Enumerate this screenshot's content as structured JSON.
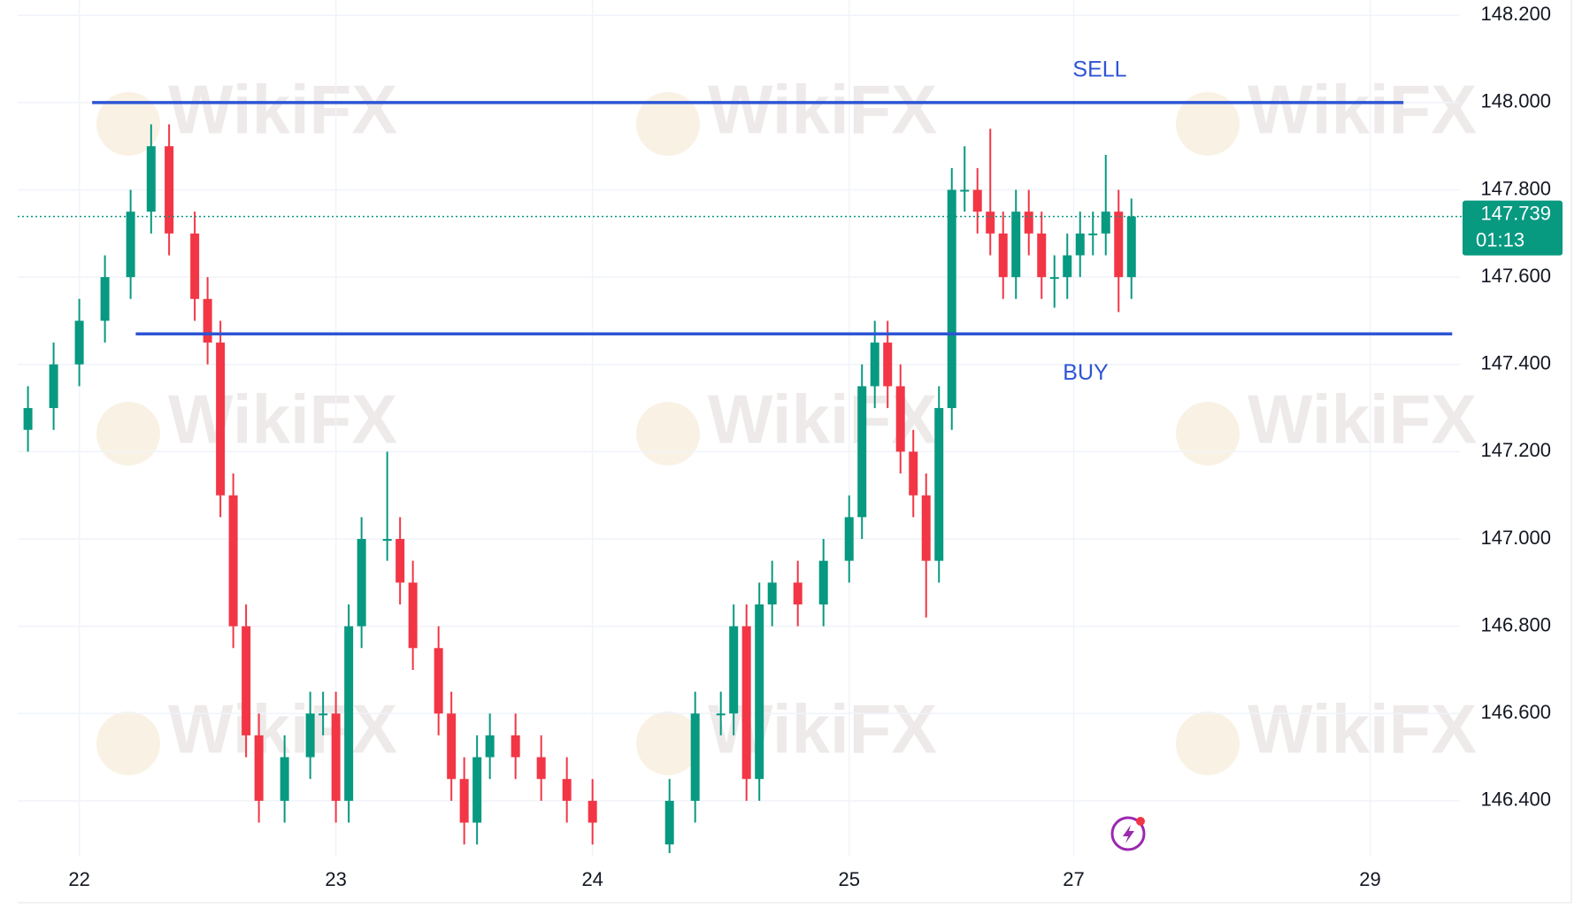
{
  "chart_data": {
    "type": "candlestick",
    "x": [
      -0.2,
      -0.1,
      0,
      0.1,
      0.2,
      0.28,
      0.35,
      0.45,
      0.5,
      0.55,
      0.6,
      0.65,
      0.7,
      0.8,
      0.9,
      0.95,
      1.0,
      1.05,
      1.1,
      1.2,
      1.25,
      1.3,
      1.4,
      1.45,
      1.5,
      1.55,
      1.6,
      1.7,
      1.8,
      1.9,
      2.0,
      2.3,
      2.4,
      2.5,
      2.55,
      2.6,
      2.65,
      2.7,
      2.8,
      2.9,
      3.0,
      3.05,
      3.1,
      3.15,
      3.2,
      3.25,
      3.3,
      3.35,
      3.4,
      3.45,
      3.5,
      3.55,
      3.6,
      3.65,
      3.7,
      3.75,
      3.8,
      3.85,
      3.9,
      3.95,
      4.0,
      4.05,
      4.1
    ],
    "open": [
      147.25,
      147.3,
      147.4,
      147.5,
      147.6,
      147.75,
      147.9,
      147.7,
      147.55,
      147.45,
      147.1,
      146.8,
      146.55,
      146.4,
      146.5,
      146.6,
      146.6,
      146.4,
      146.8,
      147.0,
      147.0,
      146.9,
      146.75,
      146.6,
      146.45,
      146.35,
      146.5,
      146.55,
      146.5,
      146.45,
      146.4,
      146.3,
      146.4,
      146.6,
      146.6,
      146.8,
      146.45,
      146.85,
      146.9,
      146.85,
      146.95,
      147.05,
      147.35,
      147.45,
      147.35,
      147.2,
      147.1,
      146.95,
      147.3,
      147.8,
      147.8,
      147.75,
      147.7,
      147.6,
      147.75,
      147.7,
      147.6,
      147.6,
      147.65,
      147.7,
      147.7,
      147.75,
      147.6
    ],
    "high": [
      147.35,
      147.45,
      147.55,
      147.65,
      147.8,
      147.95,
      147.95,
      147.75,
      147.6,
      147.5,
      147.15,
      146.85,
      146.6,
      146.55,
      146.65,
      146.65,
      146.65,
      146.85,
      147.05,
      147.2,
      147.05,
      146.95,
      146.8,
      146.65,
      146.5,
      146.55,
      146.6,
      146.6,
      146.55,
      146.5,
      146.45,
      146.45,
      146.65,
      146.65,
      146.85,
      146.85,
      146.9,
      146.95,
      146.95,
      147.0,
      147.1,
      147.4,
      147.5,
      147.5,
      147.4,
      147.25,
      147.15,
      147.35,
      147.85,
      147.9,
      147.85,
      147.94,
      147.75,
      147.8,
      147.8,
      147.75,
      147.65,
      147.7,
      147.75,
      147.75,
      147.88,
      147.8,
      147.78
    ],
    "low": [
      147.2,
      147.25,
      147.35,
      147.45,
      147.55,
      147.7,
      147.65,
      147.5,
      147.4,
      147.05,
      146.75,
      146.5,
      146.35,
      146.35,
      146.45,
      146.55,
      146.35,
      146.35,
      146.75,
      146.95,
      146.85,
      146.7,
      146.55,
      146.4,
      146.3,
      146.3,
      146.45,
      146.45,
      146.4,
      146.35,
      146.3,
      146.28,
      146.35,
      146.55,
      146.55,
      146.4,
      146.4,
      146.8,
      146.8,
      146.8,
      146.9,
      147.0,
      147.3,
      147.3,
      147.15,
      147.05,
      146.82,
      146.9,
      147.25,
      147.75,
      147.7,
      147.65,
      147.55,
      147.55,
      147.65,
      147.55,
      147.53,
      147.55,
      147.6,
      147.65,
      147.65,
      147.52,
      147.55
    ],
    "close": [
      147.3,
      147.4,
      147.5,
      147.6,
      147.75,
      147.9,
      147.7,
      147.55,
      147.45,
      147.1,
      146.8,
      146.55,
      146.4,
      146.5,
      146.6,
      146.6,
      146.4,
      146.8,
      147.0,
      147.0,
      146.9,
      146.75,
      146.6,
      146.45,
      146.35,
      146.5,
      146.55,
      146.5,
      146.45,
      146.4,
      146.35,
      146.4,
      146.6,
      146.6,
      146.8,
      146.45,
      146.85,
      146.9,
      146.85,
      146.95,
      147.05,
      147.35,
      147.45,
      147.35,
      147.2,
      147.1,
      146.95,
      147.3,
      147.8,
      147.8,
      147.75,
      147.7,
      147.6,
      147.75,
      147.7,
      147.6,
      147.6,
      147.65,
      147.7,
      147.7,
      147.75,
      147.6,
      147.739
    ],
    "up_color": "#089981",
    "down_color": "#f23645",
    "xlim": [
      -0.24,
      5.38
    ],
    "xticks": [
      {
        "value": 0,
        "label": "22"
      },
      {
        "value": 1,
        "label": "23"
      },
      {
        "value": 2,
        "label": "24"
      },
      {
        "value": 3,
        "label": "25"
      },
      {
        "value": 3.875,
        "label": "27"
      },
      {
        "value": 5.03,
        "label": "29"
      }
    ],
    "ylim": [
      146.272,
      148.235
    ],
    "yticks": [
      {
        "value": 146.4,
        "label": "146.400"
      },
      {
        "value": 146.6,
        "label": "146.600"
      },
      {
        "value": 146.8,
        "label": "146.800"
      },
      {
        "value": 147.0,
        "label": "147.000"
      },
      {
        "value": 147.2,
        "label": "147.200"
      },
      {
        "value": 147.4,
        "label": "147.400"
      },
      {
        "value": 147.6,
        "label": "147.600"
      },
      {
        "value": 147.8,
        "label": "147.800"
      },
      {
        "value": 148.0,
        "label": "148.000"
      },
      {
        "value": 148.2,
        "label": "148.200"
      }
    ],
    "grid": true,
    "levels": [
      {
        "label": "SELL",
        "value": 148.0,
        "x": [
          0.05,
          5.16
        ],
        "color": "#2d55d4"
      },
      {
        "label": "BUY",
        "value": 147.47,
        "x": [
          0.22,
          5.35
        ],
        "color": "#2d55d4"
      }
    ],
    "last_price": {
      "value": 147.739,
      "label": "147.739",
      "countdown": "01:13",
      "color": "#089981"
    },
    "watermark": "WikiFX"
  }
}
